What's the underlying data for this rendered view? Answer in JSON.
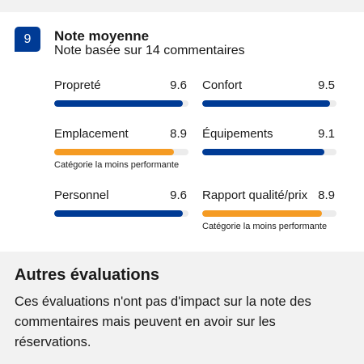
{
  "badge": 9,
  "header": {
    "title": "Note moyenne",
    "subtitle": "Note basée sur 14 commentaires"
  },
  "ratings": {
    "xlim": [
      0,
      10
    ],
    "track_color": "#ececec",
    "items": [
      {
        "label": "Propreté",
        "value": 9.6,
        "color": "#003b95"
      },
      {
        "label": "Confort",
        "value": 9.5,
        "color": "#003b95"
      },
      {
        "label": "Emplacement",
        "value": 8.9,
        "color": "#f59b23",
        "note": "Catégorie la moins performante"
      },
      {
        "label": "Équipements",
        "value": 9.1,
        "color": "#003b95"
      },
      {
        "label": "Personnel",
        "value": 9.6,
        "color": "#003b95"
      },
      {
        "label": "Rapport qualité/prix",
        "value": 8.9,
        "color": "#f59b23",
        "note": "Catégorie la moins performante"
      }
    ]
  },
  "other": {
    "title": "Autres évaluations",
    "text": "Ces évaluations n'ont pas d'impact sur la note des commentaires mais peuvent en avoir sur les réservations."
  }
}
